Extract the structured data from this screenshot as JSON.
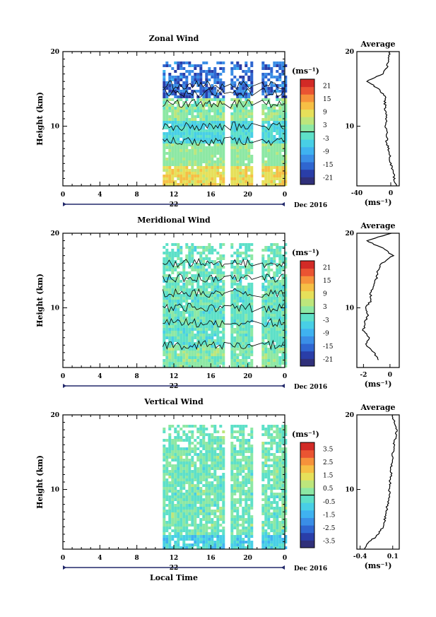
{
  "chart_data": [
    {
      "type": "heatmap",
      "title": "Zonal Wind",
      "ylabel": "Height (km)",
      "yticks": [
        "20",
        "10"
      ],
      "ylim": [
        2,
        20
      ],
      "xticks": [
        "0",
        "4",
        "8",
        "12",
        "16",
        "20",
        "0"
      ],
      "xlim": [
        0,
        24
      ],
      "date_day": "22",
      "date_month": "Dec 2016",
      "colorbar_unit": "(ms⁻¹)",
      "colorbar_ticks": [
        "21",
        "15",
        "9",
        "3",
        "-3",
        "-9",
        "-15",
        "-21"
      ],
      "colorbar_range": [
        -24,
        24
      ],
      "data_time_range": [
        10.8,
        24
      ],
      "gaps": [
        [
          17.5,
          18.1
        ],
        [
          20.5,
          21.5
        ]
      ],
      "profile": {
        "title": "Average",
        "xlabel": "(ms⁻¹)",
        "xticks": [
          "-40",
          "0"
        ],
        "xlim": [
          -40,
          10
        ],
        "yticks": [
          "20",
          "10"
        ],
        "heights": [
          2,
          3,
          4,
          5,
          6,
          7,
          8,
          9,
          10,
          11,
          12,
          13,
          14,
          15,
          16,
          17,
          18,
          19,
          20
        ],
        "values": [
          6,
          4,
          3,
          0,
          -1,
          -3,
          -5,
          -4,
          -6,
          -5,
          -6,
          -7,
          -7,
          -14,
          -28,
          -10,
          -4,
          -2,
          -1
        ]
      }
    },
    {
      "type": "heatmap",
      "title": "Meridional Wind",
      "ylabel": "Height (km)",
      "yticks": [
        "20",
        "10"
      ],
      "ylim": [
        2,
        20
      ],
      "xticks": [
        "0",
        "4",
        "8",
        "12",
        "16",
        "20",
        "0"
      ],
      "xlim": [
        0,
        24
      ],
      "date_day": "22",
      "date_month": "Dec 2016",
      "colorbar_unit": "(ms⁻¹)",
      "colorbar_ticks": [
        "21",
        "15",
        "9",
        "3",
        "-3",
        "-9",
        "-15",
        "-21"
      ],
      "colorbar_range": [
        -24,
        24
      ],
      "data_time_range": [
        10.8,
        24
      ],
      "gaps": [
        [
          17.5,
          18.1
        ],
        [
          20.5,
          21.5
        ]
      ],
      "profile": {
        "title": "Average",
        "xlabel": "(ms⁻¹)",
        "xticks": [
          "-2",
          "0"
        ],
        "xlim": [
          -2.5,
          0.7
        ],
        "yticks": [
          "20",
          "10"
        ],
        "heights": [
          3,
          4,
          5,
          6,
          7,
          8,
          9,
          10,
          11,
          12,
          13,
          14,
          15,
          16,
          17,
          18,
          19,
          20
        ],
        "values": [
          -0.9,
          -1.2,
          -1.8,
          -1.6,
          -2.0,
          -1.9,
          -1.7,
          -1.9,
          -1.4,
          -1.5,
          -1.2,
          -1.0,
          -0.9,
          -0.6,
          0.2,
          -0.5,
          -1.8,
          0.1
        ]
      }
    },
    {
      "type": "heatmap",
      "title": "Vertical Wind",
      "ylabel": "Height (km)",
      "yticks": [
        "20",
        "10"
      ],
      "ylim": [
        2,
        20
      ],
      "xticks": [
        "0",
        "4",
        "8",
        "12",
        "16",
        "20",
        "0"
      ],
      "xlim": [
        0,
        24
      ],
      "date_day": "22",
      "date_month": "Dec 2016",
      "xlabel": "Local Time",
      "colorbar_unit": "(ms⁻¹)",
      "colorbar_ticks": [
        "3.5",
        "2.5",
        "1.5",
        "0.5",
        "-0.5",
        "-1.5",
        "-2.5",
        "-3.5"
      ],
      "colorbar_range": [
        -4,
        4
      ],
      "data_time_range": [
        10.8,
        24
      ],
      "gaps": [
        [
          17.5,
          18.1
        ],
        [
          20.5,
          21.5
        ]
      ],
      "profile": {
        "title": "Average",
        "xlabel": "(ms⁻¹)",
        "xticks": [
          "-0.4",
          "0.1"
        ],
        "xlim": [
          -0.45,
          0.2
        ],
        "yticks": [
          "20",
          "10"
        ],
        "heights": [
          2,
          3,
          4,
          5,
          6,
          7,
          8,
          9,
          10,
          11,
          12,
          13,
          14,
          15,
          16,
          17,
          18,
          19,
          20
        ],
        "values": [
          -0.35,
          -0.25,
          -0.12,
          -0.05,
          -0.02,
          0.0,
          0.02,
          0.04,
          0.05,
          0.06,
          0.07,
          0.08,
          0.09,
          0.1,
          0.12,
          0.14,
          0.17,
          0.12,
          0.1
        ]
      }
    }
  ]
}
